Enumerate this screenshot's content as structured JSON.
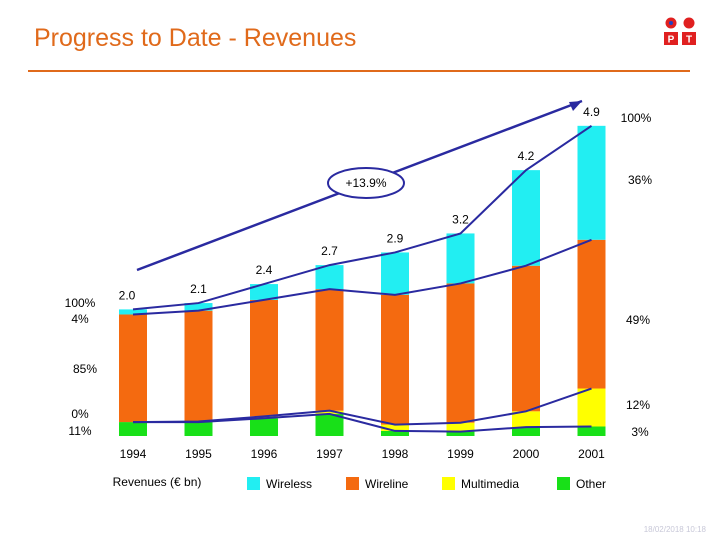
{
  "header": {
    "title": "Progress to Date - Revenues",
    "logo_letters": [
      "P",
      "T"
    ]
  },
  "footer": {
    "timestamp": "18/02/2018 10:18"
  },
  "colors": {
    "wireless": "#22eef2",
    "wireline": "#f46a10",
    "multimedia": "#ffff00",
    "other": "#18e018",
    "lines": "#2a2aa0",
    "title": "#e06a1b",
    "logo_red": "#e02020",
    "logo_blue": "#2040c0"
  },
  "chart_data": {
    "type": "bar",
    "stacked": true,
    "categories": [
      "1994",
      "1995",
      "1996",
      "1997",
      "1998",
      "1999",
      "2000",
      "2001"
    ],
    "totals": [
      2.0,
      2.1,
      2.4,
      2.7,
      2.9,
      3.2,
      4.2,
      4.9
    ],
    "total_labels": [
      "2.0",
      "2.1",
      "2.4",
      "2.7",
      "2.9",
      "3.2",
      "4.2",
      "4.9"
    ],
    "series": [
      {
        "name": "Other",
        "values": [
          0.22,
          0.22,
          0.28,
          0.35,
          0.08,
          0.07,
          0.14,
          0.15
        ]
      },
      {
        "name": "Multimedia",
        "values": [
          0.0,
          0.01,
          0.03,
          0.05,
          0.1,
          0.14,
          0.25,
          0.6
        ]
      },
      {
        "name": "Wireline",
        "values": [
          1.7,
          1.75,
          1.84,
          1.92,
          2.05,
          2.2,
          2.3,
          2.35
        ]
      },
      {
        "name": "Wireless",
        "values": [
          0.08,
          0.12,
          0.25,
          0.38,
          0.67,
          0.79,
          1.51,
          1.8
        ]
      }
    ],
    "xlabel": "Revenues (€ bn)",
    "ylim": [
      0,
      5
    ],
    "legend_position": "bottom",
    "annotations": {
      "growth": "+13.9%",
      "left_labels": [
        "100%",
        "4%",
        "85%",
        "0%",
        "11%"
      ],
      "right_labels": [
        "100%",
        "36%",
        "49%",
        "12%",
        "3%"
      ]
    }
  }
}
